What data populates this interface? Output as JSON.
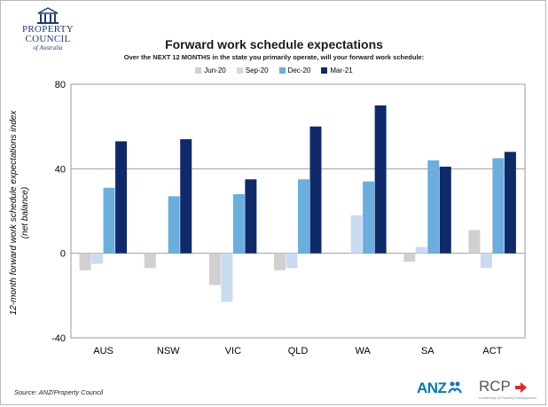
{
  "logo": {
    "line1": "PROPERTY",
    "line2": "COUNCIL",
    "line3": "of Australia"
  },
  "chart_data": {
    "type": "bar",
    "title": "Forward work schedule expectations",
    "subtitle": "Over the NEXT 12 MONTHS in the state you primarily operate, will your forward work schedule:",
    "ylabel_line1": "12-month forward work schedule expectations index",
    "ylabel_line2": "(net balance)",
    "xlabel": "",
    "categories": [
      "AUS",
      "NSW",
      "VIC",
      "QLD",
      "WA",
      "SA",
      "ACT"
    ],
    "ylim": [
      -40,
      80
    ],
    "yticks": [
      -40,
      0,
      40,
      80
    ],
    "grid": true,
    "legend_position": "top",
    "series": [
      {
        "name": "Jun-20",
        "color": "#d0d0d0",
        "values": [
          -8,
          -7,
          -15,
          -8,
          0,
          -4,
          11
        ]
      },
      {
        "name": "Sep-20",
        "color": "#c9dbef",
        "values": [
          -5,
          0,
          -23,
          -7,
          18,
          3,
          -7
        ]
      },
      {
        "name": "Dec-20",
        "color": "#6aaede",
        "values": [
          31,
          27,
          28,
          35,
          34,
          44,
          45
        ]
      },
      {
        "name": "Mar-21",
        "color": "#0f2a6b",
        "values": [
          53,
          54,
          35,
          60,
          70,
          41,
          48
        ]
      }
    ]
  },
  "footer": {
    "source": "Source: ANZ/Property Council",
    "anz_logo": "ANZ",
    "rcp_logo": "RCP",
    "rcp_tagline": "Leadership in Property Management"
  },
  "colors": {
    "brand_blue": "#1f3a7a",
    "anz_blue": "#0078c1",
    "rcp_red": "#e0252b"
  }
}
